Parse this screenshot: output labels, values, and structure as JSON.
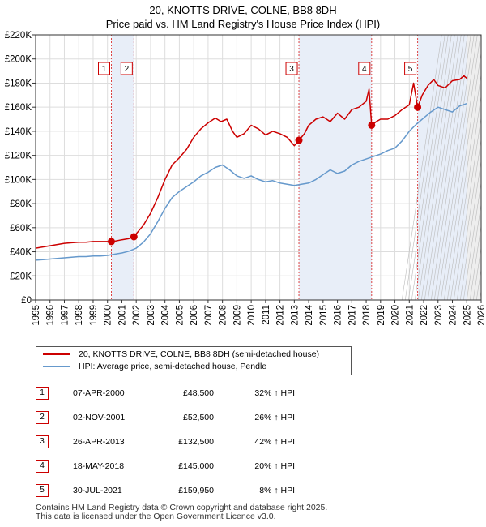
{
  "title": {
    "line1": "20, KNOTTS DRIVE, COLNE, BB8 8DH",
    "line2": "Price paid vs. HM Land Registry's House Price Index (HPI)"
  },
  "chart_data": {
    "type": "line",
    "xlim": [
      1995,
      2026
    ],
    "ylim": [
      0,
      220000
    ],
    "x_ticks": [
      "1995",
      "1996",
      "1997",
      "1998",
      "1999",
      "2000",
      "2001",
      "2002",
      "2003",
      "2004",
      "2005",
      "2006",
      "2007",
      "2008",
      "2009",
      "2010",
      "2011",
      "2012",
      "2013",
      "2014",
      "2015",
      "2016",
      "2017",
      "2018",
      "2019",
      "2020",
      "2021",
      "2022",
      "2023",
      "2024",
      "2025",
      "2026"
    ],
    "y_ticks": [
      {
        "value": 0,
        "label": "£0"
      },
      {
        "value": 20000,
        "label": "£20K"
      },
      {
        "value": 40000,
        "label": "£40K"
      },
      {
        "value": 60000,
        "label": "£60K"
      },
      {
        "value": 80000,
        "label": "£80K"
      },
      {
        "value": 100000,
        "label": "£100K"
      },
      {
        "value": 120000,
        "label": "£120K"
      },
      {
        "value": 140000,
        "label": "£140K"
      },
      {
        "value": 160000,
        "label": "£160K"
      },
      {
        "value": 180000,
        "label": "£180K"
      },
      {
        "value": 200000,
        "label": "£200K"
      },
      {
        "value": 220000,
        "label": "£220K"
      }
    ],
    "grid": true,
    "future_shading_from": 2025.0,
    "series": [
      {
        "name": "20, KNOTTS DRIVE, COLNE, BB8 8DH (semi-detached house)",
        "color": "#cc0000",
        "x": [
          1995.0,
          1995.5,
          1996.0,
          1996.5,
          1997.0,
          1997.5,
          1998.0,
          1998.5,
          1999.0,
          1999.5,
          2000.27,
          2000.5,
          2001.0,
          2001.5,
          2001.84,
          2002.0,
          2002.5,
          2003.0,
          2003.5,
          2004.0,
          2004.5,
          2005.0,
          2005.5,
          2006.0,
          2006.5,
          2007.0,
          2007.5,
          2007.9,
          2008.3,
          2008.7,
          2009.0,
          2009.5,
          2010.0,
          2010.5,
          2011.0,
          2011.5,
          2012.0,
          2012.5,
          2013.0,
          2013.32,
          2013.7,
          2014.0,
          2014.5,
          2015.0,
          2015.5,
          2016.0,
          2016.5,
          2017.0,
          2017.5,
          2018.0,
          2018.2,
          2018.38,
          2018.7,
          2019.0,
          2019.5,
          2020.0,
          2020.5,
          2021.0,
          2021.3,
          2021.58,
          2021.9,
          2022.3,
          2022.7,
          2023.0,
          2023.5,
          2024.0,
          2024.5,
          2024.8,
          2025.0
        ],
        "y": [
          43000,
          44000,
          45000,
          46000,
          47000,
          47500,
          48000,
          48000,
          48500,
          48500,
          48500,
          48800,
          50000,
          51000,
          52500,
          55000,
          62000,
          72000,
          85000,
          100000,
          112000,
          118000,
          125000,
          135000,
          142000,
          147000,
          151000,
          148000,
          150000,
          140000,
          135000,
          138000,
          145000,
          142000,
          137000,
          140000,
          138000,
          135000,
          128000,
          132500,
          138000,
          145000,
          150000,
          152000,
          148000,
          155000,
          150000,
          158000,
          160000,
          165000,
          175000,
          145000,
          148000,
          150000,
          150000,
          153000,
          158000,
          162000,
          180000,
          159950,
          170000,
          178000,
          183000,
          178000,
          176000,
          182000,
          183000,
          186000,
          184000
        ]
      },
      {
        "name": "HPI: Average price, semi-detached house, Pendle",
        "color": "#6699cc",
        "x": [
          1995.0,
          1995.5,
          1996.0,
          1996.5,
          1997.0,
          1997.5,
          1998.0,
          1998.5,
          1999.0,
          1999.5,
          2000.0,
          2000.5,
          2001.0,
          2001.5,
          2002.0,
          2002.5,
          2003.0,
          2003.5,
          2004.0,
          2004.5,
          2005.0,
          2005.5,
          2006.0,
          2006.5,
          2007.0,
          2007.5,
          2008.0,
          2008.5,
          2009.0,
          2009.5,
          2010.0,
          2010.5,
          2011.0,
          2011.5,
          2012.0,
          2012.5,
          2013.0,
          2013.5,
          2014.0,
          2014.5,
          2015.0,
          2015.5,
          2016.0,
          2016.5,
          2017.0,
          2017.5,
          2018.0,
          2018.5,
          2019.0,
          2019.5,
          2020.0,
          2020.5,
          2021.0,
          2021.5,
          2022.0,
          2022.5,
          2023.0,
          2023.5,
          2024.0,
          2024.5,
          2025.0
        ],
        "y": [
          33000,
          33500,
          34000,
          34500,
          35000,
          35500,
          36000,
          36000,
          36500,
          36500,
          37000,
          38000,
          39000,
          40500,
          43000,
          48000,
          55000,
          65000,
          76000,
          85000,
          90000,
          94000,
          98000,
          103000,
          106000,
          110000,
          112000,
          108000,
          103000,
          101000,
          103000,
          100000,
          98000,
          99000,
          97000,
          96000,
          95000,
          96000,
          97000,
          100000,
          104000,
          108000,
          105000,
          107000,
          112000,
          115000,
          117000,
          119000,
          121000,
          124000,
          126000,
          132000,
          140000,
          146000,
          151000,
          156000,
          160000,
          158000,
          156000,
          161000,
          163000
        ]
      }
    ],
    "sales": [
      {
        "label": "1",
        "x": 2000.27,
        "y": 48500
      },
      {
        "label": "2",
        "x": 2001.84,
        "y": 52500
      },
      {
        "label": "3",
        "x": 2013.32,
        "y": 132500
      },
      {
        "label": "4",
        "x": 2018.38,
        "y": 145000
      },
      {
        "label": "5",
        "x": 2021.58,
        "y": 159950
      }
    ]
  },
  "legend": {
    "items": [
      {
        "label": "20, KNOTTS DRIVE, COLNE, BB8 8DH (semi-detached house)",
        "color": "#cc0000"
      },
      {
        "label": "HPI: Average price, semi-detached house, Pendle",
        "color": "#6699cc"
      }
    ]
  },
  "sales_table": [
    {
      "num": "1",
      "date": "07-APR-2000",
      "price": "£48,500",
      "hpi": "32% ↑ HPI"
    },
    {
      "num": "2",
      "date": "02-NOV-2001",
      "price": "£52,500",
      "hpi": "26% ↑ HPI"
    },
    {
      "num": "3",
      "date": "26-APR-2013",
      "price": "£132,500",
      "hpi": "42% ↑ HPI"
    },
    {
      "num": "4",
      "date": "18-MAY-2018",
      "price": "£145,000",
      "hpi": "20% ↑ HPI"
    },
    {
      "num": "5",
      "date": "30-JUL-2021",
      "price": "£159,950",
      "hpi": "8% ↑ HPI"
    }
  ],
  "footer": {
    "line1": "Contains HM Land Registry data © Crown copyright and database right 2025.",
    "line2": "This data is licensed under the Open Government Licence v3.0."
  }
}
